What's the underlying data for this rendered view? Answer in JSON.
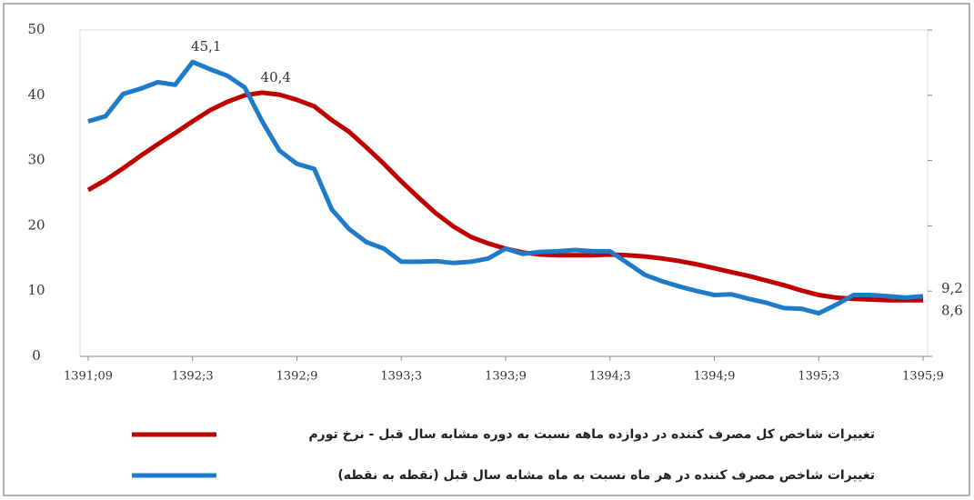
{
  "chart_data": {
    "type": "line",
    "categories": [
      "1391;09",
      null,
      null,
      null,
      null,
      null,
      "1392;3",
      null,
      null,
      null,
      null,
      null,
      "1392;9",
      null,
      null,
      null,
      null,
      null,
      "1393;3",
      null,
      null,
      null,
      null,
      null,
      "1393;9",
      null,
      null,
      null,
      null,
      null,
      "1394;3",
      null,
      null,
      null,
      null,
      null,
      "1394;9",
      null,
      null,
      null,
      null,
      null,
      "1395;3",
      null,
      null,
      null,
      null,
      null,
      "1395;9"
    ],
    "series": [
      {
        "name": "تغییرات شاخص کل مصرف کننده در دوازده ماهه نسبت به دوره مشابه سال قبل - نرخ تورم",
        "color": "#c00000",
        "values": [
          25.5,
          27,
          28.8,
          30.7,
          32.5,
          34.2,
          36,
          37.7,
          39,
          40,
          40.4,
          40.1,
          39.3,
          38.3,
          36.2,
          34.4,
          32,
          29.5,
          26.8,
          24.3,
          21.9,
          19.9,
          18.3,
          17.3,
          16.5,
          15.9,
          15.6,
          15.5,
          15.5,
          15.5,
          15.6,
          15.5,
          15.3,
          15,
          14.6,
          14.1,
          13.5,
          12.9,
          12.3,
          11.6,
          10.9,
          10.1,
          9.4,
          9,
          8.8,
          8.7,
          8.6,
          8.6,
          8.6
        ],
        "value_labels": [
          null,
          null,
          null,
          null,
          null,
          null,
          null,
          null,
          null,
          null,
          "40,4",
          null,
          null,
          null,
          null,
          null,
          null,
          null,
          null,
          null,
          null,
          null,
          null,
          null,
          null,
          null,
          null,
          null,
          null,
          null,
          null,
          null,
          null,
          null,
          null,
          null,
          null,
          null,
          null,
          null,
          null,
          null,
          null,
          null,
          null,
          null,
          null,
          null,
          "8,6"
        ]
      },
      {
        "name": "تغییرات شاخص مصرف کننده در هر ماه نسبت به ماه مشابه سال قبل (نقطه به نقطه)",
        "color": "#1f7bc8",
        "values": [
          36,
          36.8,
          40.2,
          41,
          42,
          41.6,
          45.1,
          44,
          43,
          41.2,
          36,
          31.5,
          29.5,
          28.7,
          22.5,
          19.5,
          17.5,
          16.5,
          14.5,
          14.5,
          14.6,
          14.3,
          14.5,
          15,
          16.5,
          15.7,
          16,
          16.1,
          16.3,
          16.1,
          16.1,
          14.3,
          12.5,
          11.5,
          10.7,
          10,
          9.4,
          9.5,
          8.8,
          8.2,
          7.4,
          7.3,
          6.6,
          7.9,
          9.4,
          9.4,
          9.2,
          9,
          9.2
        ],
        "value_labels": [
          null,
          null,
          null,
          null,
          null,
          null,
          "45,1",
          null,
          null,
          null,
          null,
          null,
          null,
          null,
          null,
          null,
          null,
          null,
          null,
          null,
          null,
          null,
          null,
          null,
          null,
          null,
          null,
          null,
          null,
          null,
          null,
          null,
          null,
          null,
          null,
          null,
          null,
          null,
          null,
          null,
          null,
          null,
          null,
          null,
          null,
          null,
          null,
          null,
          "9,2"
        ]
      }
    ],
    "ylim": [
      0,
      50
    ],
    "yticks": [
      0,
      10,
      20,
      30,
      40,
      50
    ]
  }
}
